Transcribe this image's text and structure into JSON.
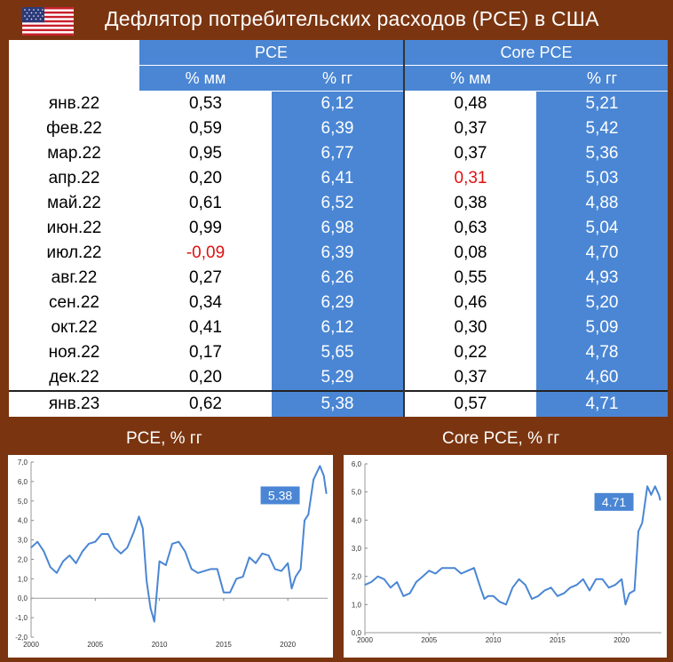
{
  "header": {
    "title": "Дефлятор потребительских расходов (PCE) в США"
  },
  "table": {
    "group_headers": [
      "PCE",
      "Core PCE"
    ],
    "sub_headers": [
      "% мм",
      "% гг",
      "% мм",
      "% гг"
    ],
    "rows": [
      {
        "month": "янв.22",
        "pce_mm": "0,53",
        "pce_yy": "6,12",
        "core_mm": "0,48",
        "core_yy": "5,21"
      },
      {
        "month": "фев.22",
        "pce_mm": "0,59",
        "pce_yy": "6,39",
        "core_mm": "0,37",
        "core_yy": "5,42"
      },
      {
        "month": "мар.22",
        "pce_mm": "0,95",
        "pce_yy": "6,77",
        "core_mm": "0,37",
        "core_yy": "5,36"
      },
      {
        "month": "апр.22",
        "pce_mm": "0,20",
        "pce_yy": "6,41",
        "core_mm": "0,31",
        "core_yy": "5,03"
      },
      {
        "month": "май.22",
        "pce_mm": "0,61",
        "pce_yy": "6,52",
        "core_mm": "0,38",
        "core_yy": "4,88"
      },
      {
        "month": "июн.22",
        "pce_mm": "0,99",
        "pce_yy": "6,98",
        "core_mm": "0,63",
        "core_yy": "5,04"
      },
      {
        "month": "июл.22",
        "pce_mm": "-0,09",
        "pce_yy": "6,39",
        "core_mm": "0,08",
        "core_yy": "4,70"
      },
      {
        "month": "авг.22",
        "pce_mm": "0,27",
        "pce_yy": "6,26",
        "core_mm": "0,55",
        "core_yy": "4,93"
      },
      {
        "month": "сен.22",
        "pce_mm": "0,34",
        "pce_yy": "6,29",
        "core_mm": "0,46",
        "core_yy": "5,20"
      },
      {
        "month": "окт.22",
        "pce_mm": "0,41",
        "pce_yy": "6,12",
        "core_mm": "0,30",
        "core_yy": "5,09"
      },
      {
        "month": "ноя.22",
        "pce_mm": "0,17",
        "pce_yy": "5,65",
        "core_mm": "0,22",
        "core_yy": "4,78"
      },
      {
        "month": "дек.22",
        "pce_mm": "0,20",
        "pce_yy": "5,29",
        "core_mm": "0,37",
        "core_yy": "4,60"
      },
      {
        "month": "янв.23",
        "pce_mm": "0,62",
        "pce_yy": "5,38",
        "core_mm": "0,57",
        "core_yy": "4,71"
      }
    ],
    "highlight_color": "#e01010",
    "column_color": "#4a86d4"
  },
  "chart_data": [
    {
      "type": "line",
      "title": "PCE, % гг",
      "xlim": [
        2000,
        2023.1
      ],
      "ylim": [
        -2.0,
        7.0
      ],
      "xticks": [
        "2000",
        "2005",
        "2010",
        "2015",
        "2020"
      ],
      "yticks": [
        "-2,0",
        "-1,0",
        "0,0",
        "1,0",
        "2,0",
        "3,0",
        "4,0",
        "5,0",
        "6,0",
        "7,0"
      ],
      "callout": "5.38",
      "x": [
        2000.0,
        2000.5,
        2001.0,
        2001.5,
        2002.0,
        2002.5,
        2003.0,
        2003.5,
        2004.0,
        2004.5,
        2005.0,
        2005.5,
        2006.0,
        2006.5,
        2007.0,
        2007.5,
        2008.0,
        2008.4,
        2008.7,
        2009.0,
        2009.3,
        2009.6,
        2010.0,
        2010.5,
        2011.0,
        2011.5,
        2012.0,
        2012.5,
        2013.0,
        2013.5,
        2014.0,
        2014.5,
        2015.0,
        2015.5,
        2016.0,
        2016.5,
        2017.0,
        2017.5,
        2018.0,
        2018.5,
        2019.0,
        2019.5,
        2020.0,
        2020.3,
        2020.6,
        2021.0,
        2021.3,
        2021.6,
        2022.0,
        2022.5,
        2022.8,
        2023.0
      ],
      "values": [
        2.6,
        2.9,
        2.4,
        1.6,
        1.3,
        1.9,
        2.2,
        1.8,
        2.4,
        2.8,
        2.9,
        3.3,
        3.3,
        2.6,
        2.3,
        2.6,
        3.4,
        4.2,
        3.6,
        0.9,
        -0.5,
        -1.2,
        1.9,
        1.7,
        2.8,
        2.9,
        2.4,
        1.5,
        1.3,
        1.4,
        1.5,
        1.5,
        0.3,
        0.3,
        1.0,
        1.1,
        2.1,
        1.8,
        2.3,
        2.2,
        1.5,
        1.4,
        1.8,
        0.5,
        1.1,
        1.5,
        4.0,
        4.3,
        6.1,
        6.8,
        6.3,
        5.38
      ]
    },
    {
      "type": "line",
      "title": "Core PCE, % гг",
      "xlim": [
        2000,
        2023.1
      ],
      "ylim": [
        0.0,
        6.0
      ],
      "xticks": [
        "2000",
        "2005",
        "2010",
        "2015",
        "2020"
      ],
      "yticks": [
        "0,0",
        "1,0",
        "2,0",
        "3,0",
        "4,0",
        "5,0",
        "6,0"
      ],
      "callout": "4.71",
      "x": [
        2000.0,
        2000.5,
        2001.0,
        2001.5,
        2002.0,
        2002.5,
        2003.0,
        2003.5,
        2004.0,
        2004.5,
        2005.0,
        2005.5,
        2006.0,
        2006.5,
        2007.0,
        2007.5,
        2008.0,
        2008.5,
        2009.0,
        2009.3,
        2009.6,
        2010.0,
        2010.5,
        2011.0,
        2011.5,
        2012.0,
        2012.5,
        2013.0,
        2013.5,
        2014.0,
        2014.5,
        2015.0,
        2015.5,
        2016.0,
        2016.5,
        2017.0,
        2017.5,
        2018.0,
        2018.5,
        2019.0,
        2019.5,
        2020.0,
        2020.3,
        2020.6,
        2021.0,
        2021.3,
        2021.6,
        2022.0,
        2022.3,
        2022.6,
        2022.9,
        2023.0
      ],
      "values": [
        1.7,
        1.8,
        2.0,
        1.9,
        1.6,
        1.8,
        1.3,
        1.4,
        1.8,
        2.0,
        2.2,
        2.1,
        2.3,
        2.3,
        2.3,
        2.1,
        2.2,
        2.3,
        1.6,
        1.2,
        1.3,
        1.3,
        1.1,
        1.0,
        1.6,
        1.9,
        1.7,
        1.2,
        1.3,
        1.5,
        1.6,
        1.3,
        1.4,
        1.6,
        1.7,
        1.9,
        1.5,
        1.9,
        1.9,
        1.6,
        1.7,
        1.9,
        1.0,
        1.4,
        1.5,
        3.6,
        3.9,
        5.2,
        4.9,
        5.2,
        4.9,
        4.71
      ]
    }
  ]
}
